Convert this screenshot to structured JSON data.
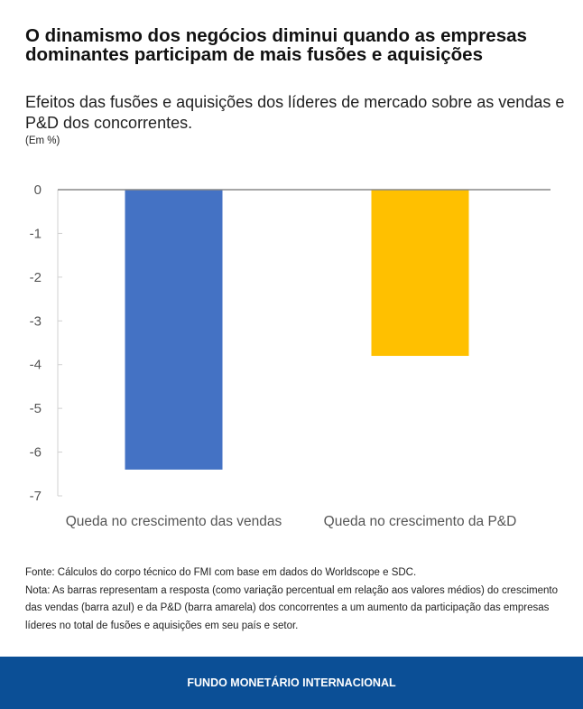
{
  "title": "O dinamismo dos negócios diminui quando as empresas dominantes participam de mais fusões e aquisições",
  "subtitle": "Efeitos das fusões e aquisições dos líderes de mercado sobre as vendas e P&D dos concorrentes.",
  "unit": "(Em %)",
  "chart_data": {
    "type": "bar",
    "categories": [
      "Queda no crescimento das vendas",
      "Queda no crescimento da P&D"
    ],
    "values": [
      -6.4,
      -3.8
    ],
    "colors": [
      "#4472c4",
      "#ffc000"
    ],
    "ylim": [
      -7,
      0
    ],
    "yticks": [
      "0",
      "-1",
      "-2",
      "-3",
      "-4",
      "-5",
      "-6",
      "-7"
    ],
    "grid": false
  },
  "notes": {
    "source": "Fonte: Cálculos do corpo técnico do FMI com base em dados do Worldscope e SDC.",
    "note": "Nota: As barras representam a resposta (como variação percentual em relação aos valores médios) do crescimento das vendas (barra azul) e da P&D (barra amarela) dos concorrentes a um aumento da participação das empresas líderes no total de fusões e aquisições em seu país e setor."
  },
  "footer": "FUNDO MONETÁRIO INTERNACIONAL"
}
